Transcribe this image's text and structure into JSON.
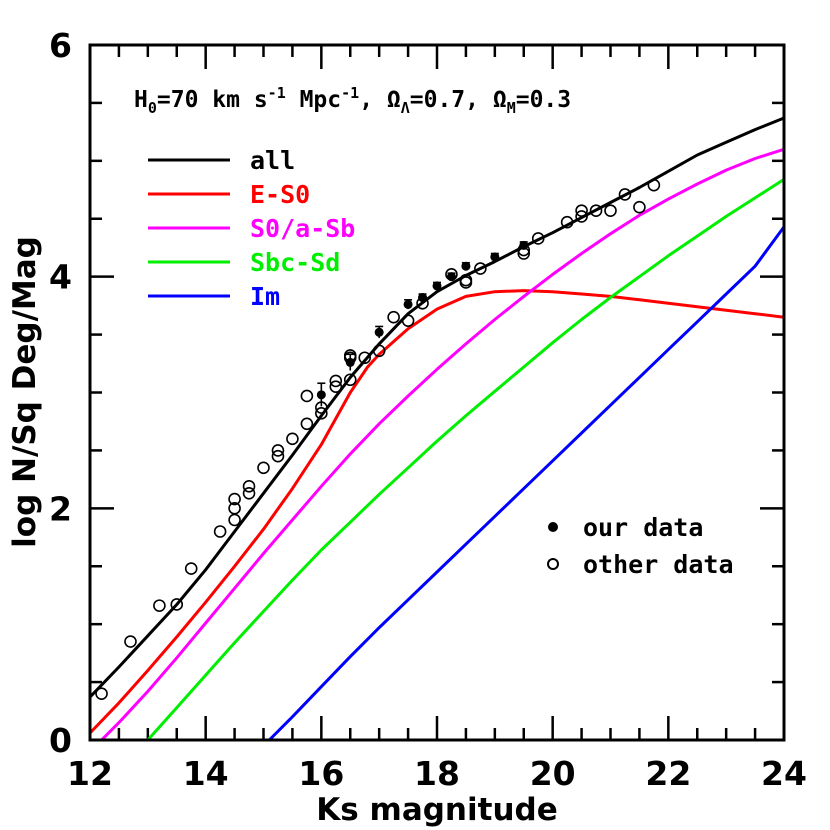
{
  "chart_data": {
    "type": "line",
    "title": "",
    "header": {
      "h0_symbol": "H",
      "h0_sub": "0",
      "h0_value": "=70 km s",
      "units_exp1": "-1",
      "mpc": " Mpc",
      "units_exp2": "-1",
      "omega_l_sep": ", Ω",
      "omega_l_sub": "Λ",
      "omega_l_value": "=0.7, Ω",
      "omega_m_sub": "M",
      "omega_m_value": "=0.3"
    },
    "xlabel": "Ks magnitude",
    "ylabel": "log N/Sq Deg/Mag",
    "xlim": [
      12,
      24
    ],
    "ylim": [
      0,
      6
    ],
    "x_ticks": [
      12,
      14,
      16,
      18,
      20,
      22,
      24
    ],
    "y_ticks": [
      0,
      2,
      4,
      6
    ],
    "x_minor_step": 0.5,
    "y_minor_step": 0.5,
    "legend_placement": "top-left",
    "series": [
      {
        "name": "all",
        "color": "#000000",
        "points": [
          [
            12,
            0.37
          ],
          [
            12.5,
            0.63
          ],
          [
            13,
            0.9
          ],
          [
            13.5,
            1.17
          ],
          [
            14,
            1.47
          ],
          [
            14.5,
            1.8
          ],
          [
            15,
            2.13
          ],
          [
            15.5,
            2.46
          ],
          [
            16,
            2.8
          ],
          [
            16.5,
            3.13
          ],
          [
            17,
            3.42
          ],
          [
            17.5,
            3.68
          ],
          [
            18,
            3.87
          ],
          [
            18.5,
            4.01
          ],
          [
            19,
            4.13
          ],
          [
            19.5,
            4.26
          ],
          [
            20,
            4.38
          ],
          [
            20.5,
            4.51
          ],
          [
            21,
            4.64
          ],
          [
            21.5,
            4.77
          ],
          [
            22,
            4.91
          ],
          [
            22.5,
            5.05
          ],
          [
            23,
            5.16
          ],
          [
            23.5,
            5.27
          ],
          [
            24,
            5.37
          ]
        ]
      },
      {
        "name": "E-S0",
        "color": "#ff0000",
        "points": [
          [
            12,
            0.06
          ],
          [
            12.5,
            0.32
          ],
          [
            13,
            0.6
          ],
          [
            13.5,
            0.89
          ],
          [
            14,
            1.19
          ],
          [
            14.5,
            1.5
          ],
          [
            15,
            1.82
          ],
          [
            15.5,
            2.17
          ],
          [
            16,
            2.55
          ],
          [
            16.5,
            3.0
          ],
          [
            16.8,
            3.22
          ],
          [
            17,
            3.33
          ],
          [
            17.5,
            3.55
          ],
          [
            18,
            3.72
          ],
          [
            18.5,
            3.83
          ],
          [
            19,
            3.87
          ],
          [
            19.5,
            3.88
          ],
          [
            20,
            3.87
          ],
          [
            20.5,
            3.85
          ],
          [
            21,
            3.83
          ],
          [
            21.5,
            3.8
          ],
          [
            22,
            3.77
          ],
          [
            22.5,
            3.74
          ],
          [
            23,
            3.71
          ],
          [
            23.5,
            3.68
          ],
          [
            24,
            3.65
          ]
        ]
      },
      {
        "name": "S0/a-Sb",
        "color": "#ff00ff",
        "points": [
          [
            12.2,
            0
          ],
          [
            12.5,
            0.15
          ],
          [
            13,
            0.42
          ],
          [
            13.5,
            0.71
          ],
          [
            14,
            1.01
          ],
          [
            14.5,
            1.31
          ],
          [
            15,
            1.61
          ],
          [
            15.5,
            1.9
          ],
          [
            16,
            2.19
          ],
          [
            16.5,
            2.47
          ],
          [
            17,
            2.73
          ],
          [
            17.5,
            2.97
          ],
          [
            18,
            3.2
          ],
          [
            18.5,
            3.42
          ],
          [
            19,
            3.63
          ],
          [
            19.5,
            3.83
          ],
          [
            20,
            4.02
          ],
          [
            20.5,
            4.2
          ],
          [
            21,
            4.37
          ],
          [
            21.5,
            4.53
          ],
          [
            22,
            4.67
          ],
          [
            22.5,
            4.8
          ],
          [
            23,
            4.92
          ],
          [
            23.5,
            5.02
          ],
          [
            24,
            5.1
          ]
        ]
      },
      {
        "name": "Sbc-Sd",
        "color": "#00ee00",
        "points": [
          [
            13,
            0
          ],
          [
            13.5,
            0.28
          ],
          [
            14,
            0.56
          ],
          [
            14.5,
            0.84
          ],
          [
            15,
            1.11
          ],
          [
            15.5,
            1.38
          ],
          [
            16,
            1.64
          ],
          [
            16.5,
            1.88
          ],
          [
            17,
            2.12
          ],
          [
            17.5,
            2.35
          ],
          [
            18,
            2.58
          ],
          [
            18.5,
            2.8
          ],
          [
            19,
            3.01
          ],
          [
            19.5,
            3.22
          ],
          [
            20,
            3.43
          ],
          [
            20.5,
            3.63
          ],
          [
            21,
            3.82
          ],
          [
            21.5,
            4.0
          ],
          [
            22,
            4.18
          ],
          [
            22.5,
            4.35
          ],
          [
            23,
            4.52
          ],
          [
            23.5,
            4.68
          ],
          [
            24,
            4.84
          ]
        ]
      },
      {
        "name": "Im",
        "color": "#0000ff",
        "points": [
          [
            15.1,
            0
          ],
          [
            15.5,
            0.2
          ],
          [
            16,
            0.46
          ],
          [
            16.5,
            0.72
          ],
          [
            17,
            0.97
          ],
          [
            17.5,
            1.21
          ],
          [
            18,
            1.45
          ],
          [
            18.5,
            1.69
          ],
          [
            19,
            1.93
          ],
          [
            19.5,
            2.17
          ],
          [
            20,
            2.41
          ],
          [
            20.5,
            2.65
          ],
          [
            21,
            2.89
          ],
          [
            21.5,
            3.13
          ],
          [
            22,
            3.37
          ],
          [
            22.5,
            3.61
          ],
          [
            23,
            3.85
          ],
          [
            23.5,
            4.09
          ],
          [
            24,
            4.43
          ]
        ]
      }
    ],
    "markers": [
      {
        "name": "our data",
        "style": "filled",
        "points": [
          [
            16,
            2.98
          ],
          [
            16.5,
            3.26
          ],
          [
            17,
            3.52
          ],
          [
            17.5,
            3.76
          ],
          [
            17.75,
            3.82
          ],
          [
            18,
            3.92
          ],
          [
            18.25,
            4.0
          ],
          [
            18.5,
            4.09
          ],
          [
            19,
            4.17
          ],
          [
            19.5,
            4.27
          ]
        ],
        "error_bars": [
          0.1,
          0.07,
          0.05,
          0.04,
          0.03,
          0.03,
          0.03,
          0.03,
          0.03,
          0.03
        ]
      },
      {
        "name": "other data",
        "style": "open",
        "points": [
          [
            12.2,
            0.4
          ],
          [
            12.7,
            0.85
          ],
          [
            13.2,
            1.16
          ],
          [
            13.5,
            1.17
          ],
          [
            13.75,
            1.48
          ],
          [
            14.25,
            1.8
          ],
          [
            14.5,
            1.9
          ],
          [
            14.5,
            2.0
          ],
          [
            14.5,
            2.08
          ],
          [
            14.75,
            2.13
          ],
          [
            14.75,
            2.19
          ],
          [
            15,
            2.35
          ],
          [
            15.25,
            2.45
          ],
          [
            15.25,
            2.5
          ],
          [
            15.5,
            2.6
          ],
          [
            15.75,
            2.73
          ],
          [
            15.75,
            2.97
          ],
          [
            16,
            2.82
          ],
          [
            16,
            2.87
          ],
          [
            16.25,
            3.05
          ],
          [
            16.25,
            3.1
          ],
          [
            16.5,
            3.11
          ],
          [
            16.5,
            3.3
          ],
          [
            16.5,
            3.32
          ],
          [
            16.75,
            3.3
          ],
          [
            17,
            3.36
          ],
          [
            17.25,
            3.65
          ],
          [
            17.5,
            3.62
          ],
          [
            17.75,
            3.77
          ],
          [
            18.25,
            4.02
          ],
          [
            18.5,
            3.95
          ],
          [
            18.5,
            3.97
          ],
          [
            18.75,
            4.07
          ],
          [
            19.5,
            4.2
          ],
          [
            19.5,
            4.23
          ],
          [
            19.75,
            4.33
          ],
          [
            20.25,
            4.47
          ],
          [
            20.5,
            4.52
          ],
          [
            20.5,
            4.57
          ],
          [
            20.75,
            4.57
          ],
          [
            21,
            4.57
          ],
          [
            21.25,
            4.71
          ],
          [
            21.5,
            4.6
          ],
          [
            21.75,
            4.79
          ]
        ]
      }
    ]
  }
}
